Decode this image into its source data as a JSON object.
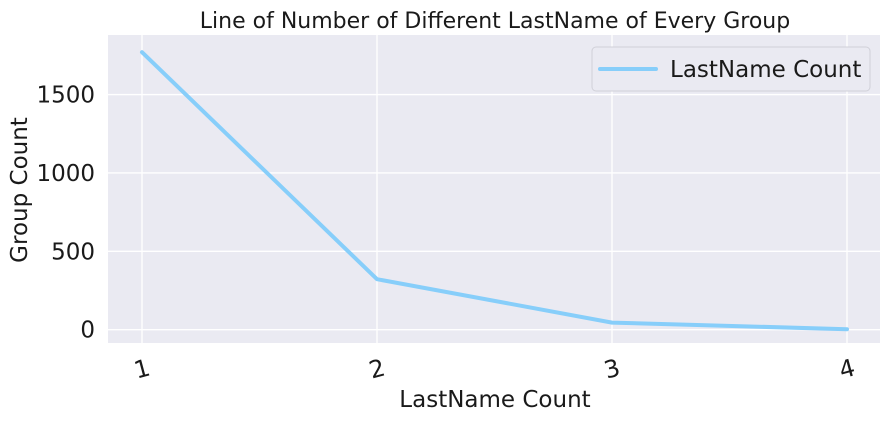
{
  "chart_data": {
    "type": "line",
    "title": "Line of Number of Different LastName of Every Group",
    "xlabel": "LastName Count",
    "ylabel": "Group Count",
    "x": [
      "1",
      "2",
      "3",
      "4"
    ],
    "series": [
      {
        "name": "LastName Count",
        "values": [
          1770,
          322,
          45,
          3
        ]
      }
    ],
    "ylim": [
      -85,
      1880
    ],
    "yticks": [
      0,
      500,
      1000,
      1500
    ],
    "ytick_labels": [
      "0",
      "500",
      "1000",
      "1500"
    ],
    "grid": true,
    "legend": "top-right",
    "colors": {
      "line": "#87cefa",
      "plot_bg": "#eaeaf2",
      "grid": "#ffffff"
    }
  }
}
